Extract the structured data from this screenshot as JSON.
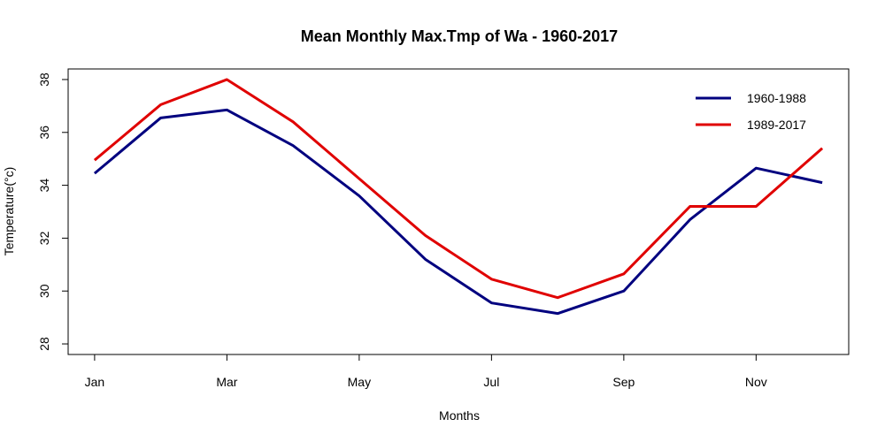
{
  "chart_data": {
    "type": "line",
    "title": "Mean Monthly Max.Tmp of Wa - 1960-2017",
    "xlabel": "Months",
    "ylabel": "Temperature(°c)",
    "x": [
      1,
      2,
      3,
      4,
      5,
      6,
      7,
      8,
      9,
      10,
      11,
      12
    ],
    "xticks": [
      1,
      3,
      5,
      7,
      9,
      11
    ],
    "xtick_labels": [
      "Jan",
      "Mar",
      "May",
      "Jul",
      "Sep",
      "Nov"
    ],
    "yticks": [
      28,
      30,
      32,
      34,
      36,
      38
    ],
    "ytick_labels": [
      "28",
      "30",
      "32",
      "34",
      "36",
      "38"
    ],
    "xlim": [
      0.6,
      12.4
    ],
    "ylim": [
      27.6,
      38.4
    ],
    "legend_position": "top-right",
    "grid": false,
    "series": [
      {
        "name": "1960-1988",
        "color": "#00007f",
        "values": [
          34.45,
          36.55,
          36.85,
          35.5,
          33.6,
          31.2,
          29.55,
          29.15,
          30.0,
          32.7,
          34.65,
          34.1
        ]
      },
      {
        "name": "1989-2017",
        "color": "#e00000",
        "values": [
          34.95,
          37.05,
          38.0,
          36.4,
          34.25,
          32.1,
          30.45,
          29.75,
          30.65,
          33.2,
          33.2,
          35.4
        ]
      }
    ]
  }
}
